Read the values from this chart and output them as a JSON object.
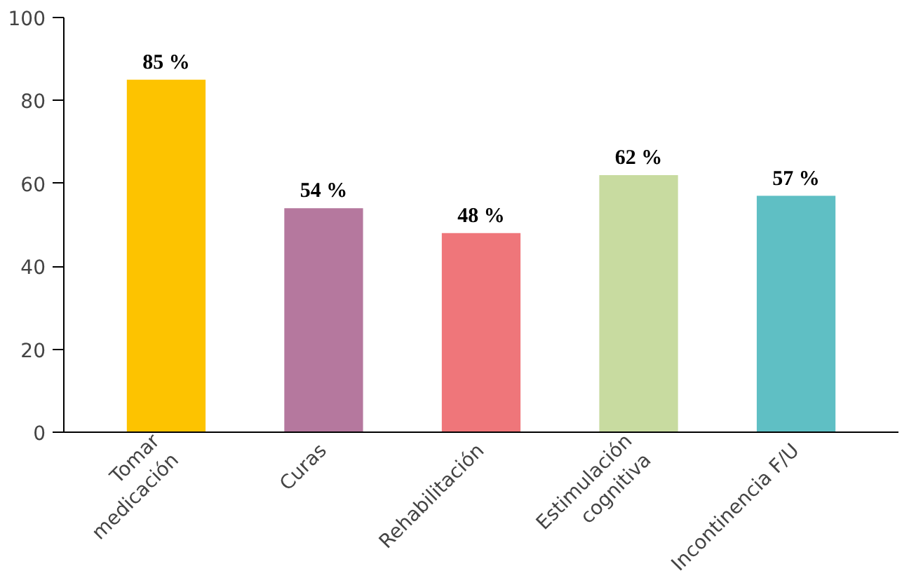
{
  "chart_data": {
    "type": "bar",
    "categories": [
      "Tomar\nmedicación",
      "Curas",
      "Rehabilitación",
      "Estimulación\ncognitiva",
      "Incontinencia F/U"
    ],
    "values": [
      85,
      54,
      48,
      62,
      57
    ],
    "colors": [
      "#fdc300",
      "#b5789e",
      "#ef767a",
      "#c8dba0",
      "#5fbfc4"
    ],
    "value_labels": [
      "85 %",
      "54 %",
      "48 %",
      "62 %",
      "57 %"
    ],
    "ylim": [
      0,
      100
    ],
    "yticks": [
      0,
      20,
      40,
      60,
      80,
      100
    ],
    "grid": false
  }
}
